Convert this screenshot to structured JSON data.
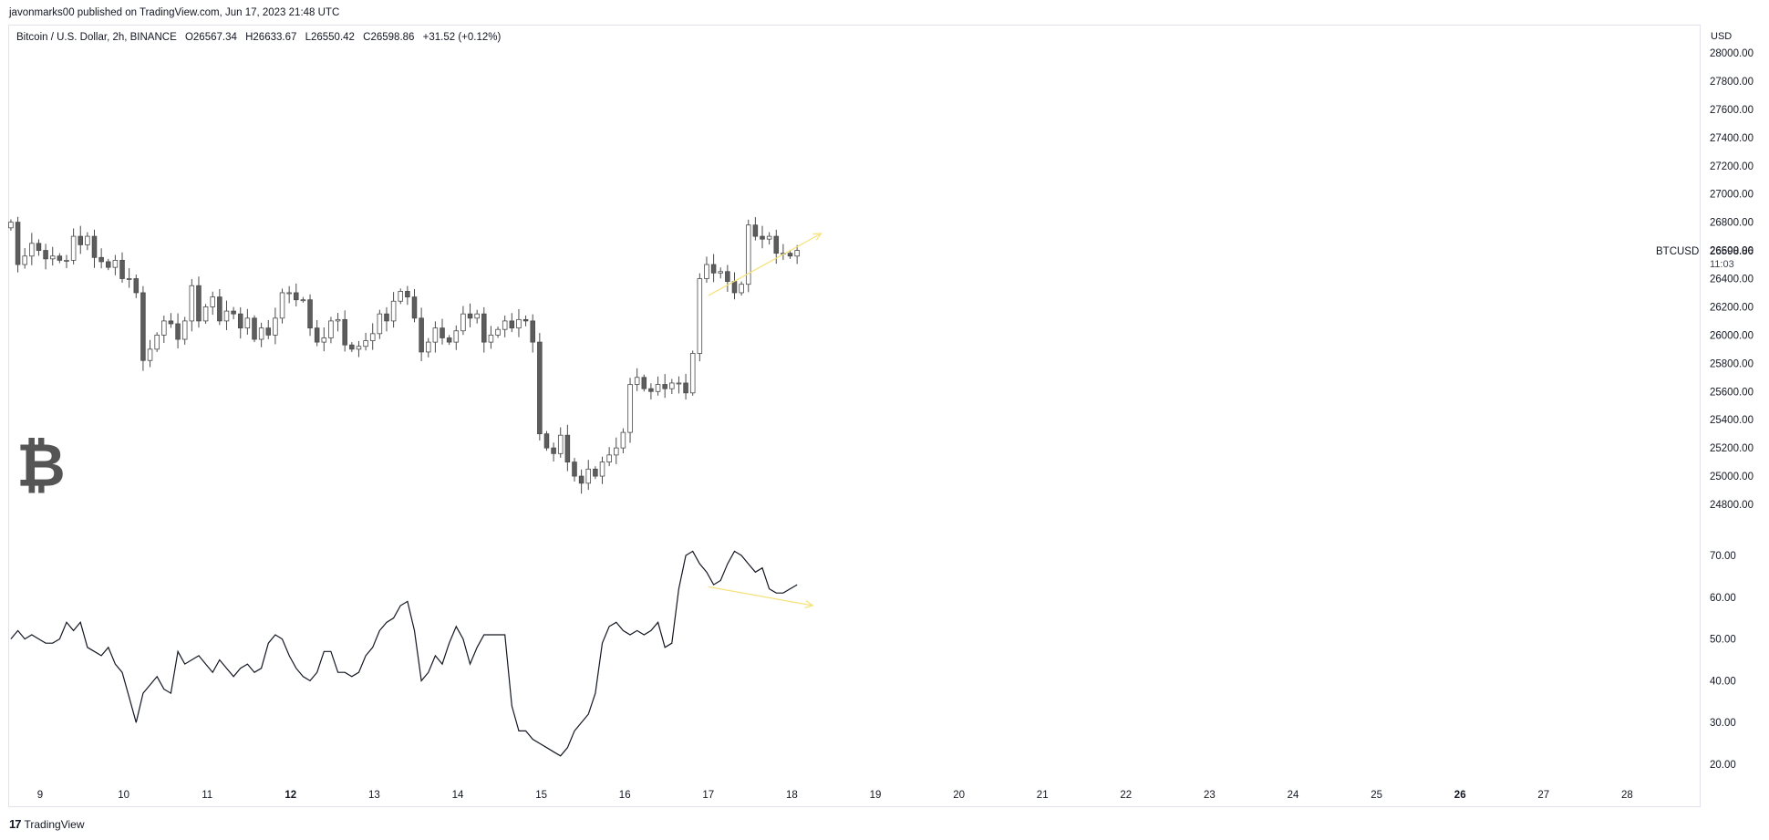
{
  "header": {
    "published_line": "javonmarks00 published on TradingView.com, Jun 17, 2023 21:48 UTC"
  },
  "legend": {
    "symbol": "Bitcoin / U.S. Dollar, 2h, BINANCE",
    "open": "O26567.34",
    "high": "H26633.67",
    "low": "L26550.42",
    "close": "C26598.86",
    "change": "+31.52 (+0.12%)"
  },
  "price_axis": {
    "currency": "USD",
    "symbol_tag": "BTCUSD",
    "last_price": "26598.86",
    "countdown": "11:03"
  },
  "logo": {
    "glyph": "₿",
    "icon": "bitcoin-logo-icon"
  },
  "footer": {
    "brand": "TradingView",
    "brand_mark": "17"
  },
  "colors": {
    "candle_up_fill": "#ffffff",
    "candle_down_fill": "#5d5d5d",
    "candle_border": "#4a4a4a",
    "indicator_line": "#131722",
    "divergence_arrow": "#f5e27a",
    "grid": "#f0f3fa"
  },
  "chart_data": [
    {
      "type": "candlestick",
      "title": "Bitcoin / U.S. Dollar, 2h, BINANCE",
      "ylim": [
        24700,
        28100
      ],
      "y_ticks": [
        24800,
        25000,
        25200,
        25400,
        25600,
        25800,
        26000,
        26200,
        26400,
        26600,
        26800,
        27000,
        27200,
        27400,
        27600,
        27800,
        28000
      ],
      "x_ticks": [
        "9",
        "10",
        "11",
        "12",
        "13",
        "14",
        "15",
        "16",
        "17",
        "18",
        "19",
        "20",
        "21",
        "22",
        "23",
        "24",
        "25",
        "26",
        "27",
        "28"
      ],
      "x_start": 8.65,
      "x_step_days": 0.0833,
      "closes": [
        26800,
        26500,
        26560,
        26650,
        26600,
        26540,
        26560,
        26530,
        26530,
        26700,
        26640,
        26700,
        26550,
        26520,
        26480,
        26530,
        26400,
        26400,
        26300,
        25820,
        25900,
        26000,
        26100,
        26080,
        25970,
        26100,
        26350,
        26100,
        26200,
        26270,
        26100,
        26170,
        26150,
        26050,
        26120,
        25970,
        26050,
        26000,
        26120,
        26300,
        26300,
        26250,
        26250,
        26050,
        25950,
        25980,
        26100,
        26110,
        25930,
        25900,
        25920,
        25960,
        26010,
        26150,
        26100,
        26240,
        26310,
        26270,
        26120,
        25880,
        25950,
        26050,
        25980,
        25950,
        26030,
        26150,
        26120,
        26150,
        25950,
        26000,
        26040,
        26100,
        26050,
        26110,
        26100,
        25950,
        25300,
        25200,
        25160,
        25290,
        25100,
        25000,
        24950,
        25050,
        25000,
        25100,
        25150,
        25200,
        25310,
        25650,
        25700,
        25620,
        25600,
        25650,
        25620,
        25660,
        25660,
        25590,
        25870,
        26400,
        26500,
        26440,
        26450,
        26380,
        26300,
        26360,
        26780,
        26700,
        26680,
        26700,
        26580,
        26580,
        26560,
        26600
      ]
    },
    {
      "type": "line",
      "title": "",
      "ylim": [
        16,
        76
      ],
      "y_ticks": [
        20,
        30,
        40,
        50,
        60,
        70
      ],
      "x_start": 8.65,
      "x_step_days": 0.0833,
      "values": [
        50,
        52,
        50,
        51,
        50,
        49,
        49,
        50,
        54,
        52,
        54,
        48,
        47,
        46,
        48,
        44,
        42,
        36,
        30,
        37,
        39,
        41,
        38,
        37,
        47,
        44,
        45,
        46,
        44,
        42,
        45,
        43,
        41,
        43,
        44,
        42,
        43,
        49,
        51,
        50,
        46,
        43,
        41,
        40,
        42,
        47,
        47,
        42,
        42,
        41,
        42,
        46,
        48,
        52,
        54,
        55,
        58,
        59,
        52,
        40,
        42,
        46,
        44,
        49,
        53,
        50,
        44,
        48,
        51,
        51,
        51,
        51,
        34,
        28,
        28,
        26,
        25,
        24,
        23,
        22,
        24,
        28,
        30,
        32,
        37,
        49,
        53,
        54,
        52,
        51,
        52,
        51,
        52,
        54,
        48,
        49,
        62,
        70,
        71,
        68,
        66,
        63,
        64,
        68,
        71,
        70,
        68,
        66,
        67,
        62,
        61,
        61,
        62,
        63
      ]
    }
  ],
  "annotations": [
    {
      "pane": "price",
      "from": [
        17.0,
        26280
      ],
      "to": [
        18.35,
        26720
      ],
      "color": "#f5e27a"
    },
    {
      "pane": "indicator",
      "from": [
        17.0,
        62.5
      ],
      "to": [
        18.25,
        58
      ],
      "color": "#f5e27a"
    }
  ]
}
